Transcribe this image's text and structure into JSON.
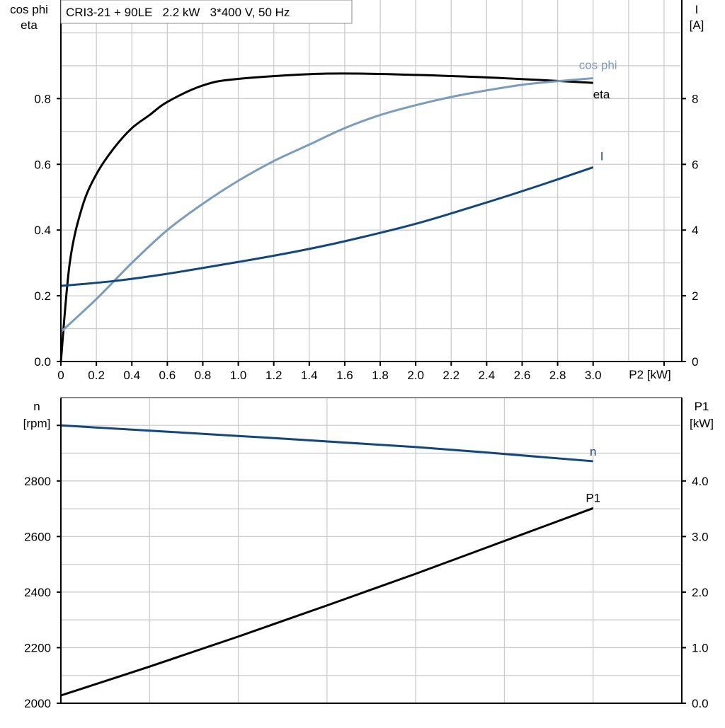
{
  "chart_data": [
    {
      "type": "line",
      "title": "CRI3-21 + 90LE   2.2 kW   3*400 V, 50 Hz",
      "xlabel": "P2 [kW]",
      "ylabel_left": [
        "cos phi",
        "eta"
      ],
      "ylabel_right": [
        "I",
        "[A]"
      ],
      "xlim": [
        0,
        3.5
      ],
      "ylim_left": [
        0,
        1.1
      ],
      "ylim_right": [
        0,
        11
      ],
      "x_ticks": [
        "0",
        "0.2",
        "0.4",
        "0.6",
        "0.8",
        "1.0",
        "1.2",
        "1.4",
        "1.6",
        "1.8",
        "2.0",
        "2.2",
        "2.4",
        "2.6",
        "2.8",
        "3.0"
      ],
      "y_ticks_left": [
        "0.0",
        "0.2",
        "0.4",
        "0.6",
        "0.8"
      ],
      "y_ticks_right": [
        "0",
        "2",
        "4",
        "6",
        "8"
      ],
      "grid": true,
      "series": [
        {
          "name": "eta",
          "axis": "left",
          "color": "#000000",
          "x": [
            0,
            0.05,
            0.12,
            0.2,
            0.3,
            0.4,
            0.5,
            0.6,
            0.8,
            1.0,
            1.5,
            2.0,
            2.5,
            3.0
          ],
          "y": [
            0,
            0.3,
            0.47,
            0.57,
            0.65,
            0.71,
            0.75,
            0.79,
            0.84,
            0.86,
            0.876,
            0.872,
            0.862,
            0.848
          ]
        },
        {
          "name": "cos phi",
          "axis": "left",
          "color": "#7a9cbe",
          "x": [
            0,
            0.2,
            0.4,
            0.6,
            0.8,
            1.0,
            1.2,
            1.4,
            1.6,
            1.8,
            2.0,
            2.2,
            2.4,
            2.6,
            2.8,
            3.0
          ],
          "y": [
            0.09,
            0.19,
            0.3,
            0.4,
            0.48,
            0.55,
            0.61,
            0.66,
            0.71,
            0.75,
            0.78,
            0.805,
            0.825,
            0.842,
            0.853,
            0.862
          ]
        },
        {
          "name": "I",
          "axis": "right",
          "color": "#12467f",
          "x": [
            0,
            0.3,
            0.6,
            1.0,
            1.3,
            1.6,
            2.0,
            2.4,
            2.7,
            3.0
          ],
          "y": [
            2.3,
            2.45,
            2.67,
            3.03,
            3.32,
            3.66,
            4.19,
            4.84,
            5.36,
            5.91
          ]
        }
      ]
    },
    {
      "type": "line",
      "xlim": [
        0,
        3.5
      ],
      "ylabel_left": [
        "n",
        "[rpm]"
      ],
      "ylabel_right": [
        "P1",
        "[kW]"
      ],
      "ylim_left": [
        2000,
        3100
      ],
      "ylim_right": [
        0,
        5.5
      ],
      "y_ticks_left": [
        "2000",
        "2200",
        "2400",
        "2600",
        "2800"
      ],
      "y_ticks_right": [
        "0.0",
        "1.0",
        "2.0",
        "3.0",
        "4.0"
      ],
      "grid": true,
      "series": [
        {
          "name": "n",
          "axis": "left",
          "color": "#12467f",
          "x": [
            0,
            1.0,
            2.0,
            3.0
          ],
          "y": [
            3000,
            2962,
            2922,
            2871
          ]
        },
        {
          "name": "P1",
          "axis": "right",
          "color": "#000000",
          "x": [
            0,
            0.5,
            1.0,
            1.5,
            2.0,
            2.5,
            3.0
          ],
          "y": [
            0.14,
            0.66,
            1.2,
            1.76,
            2.33,
            2.92,
            3.51
          ]
        }
      ]
    }
  ]
}
